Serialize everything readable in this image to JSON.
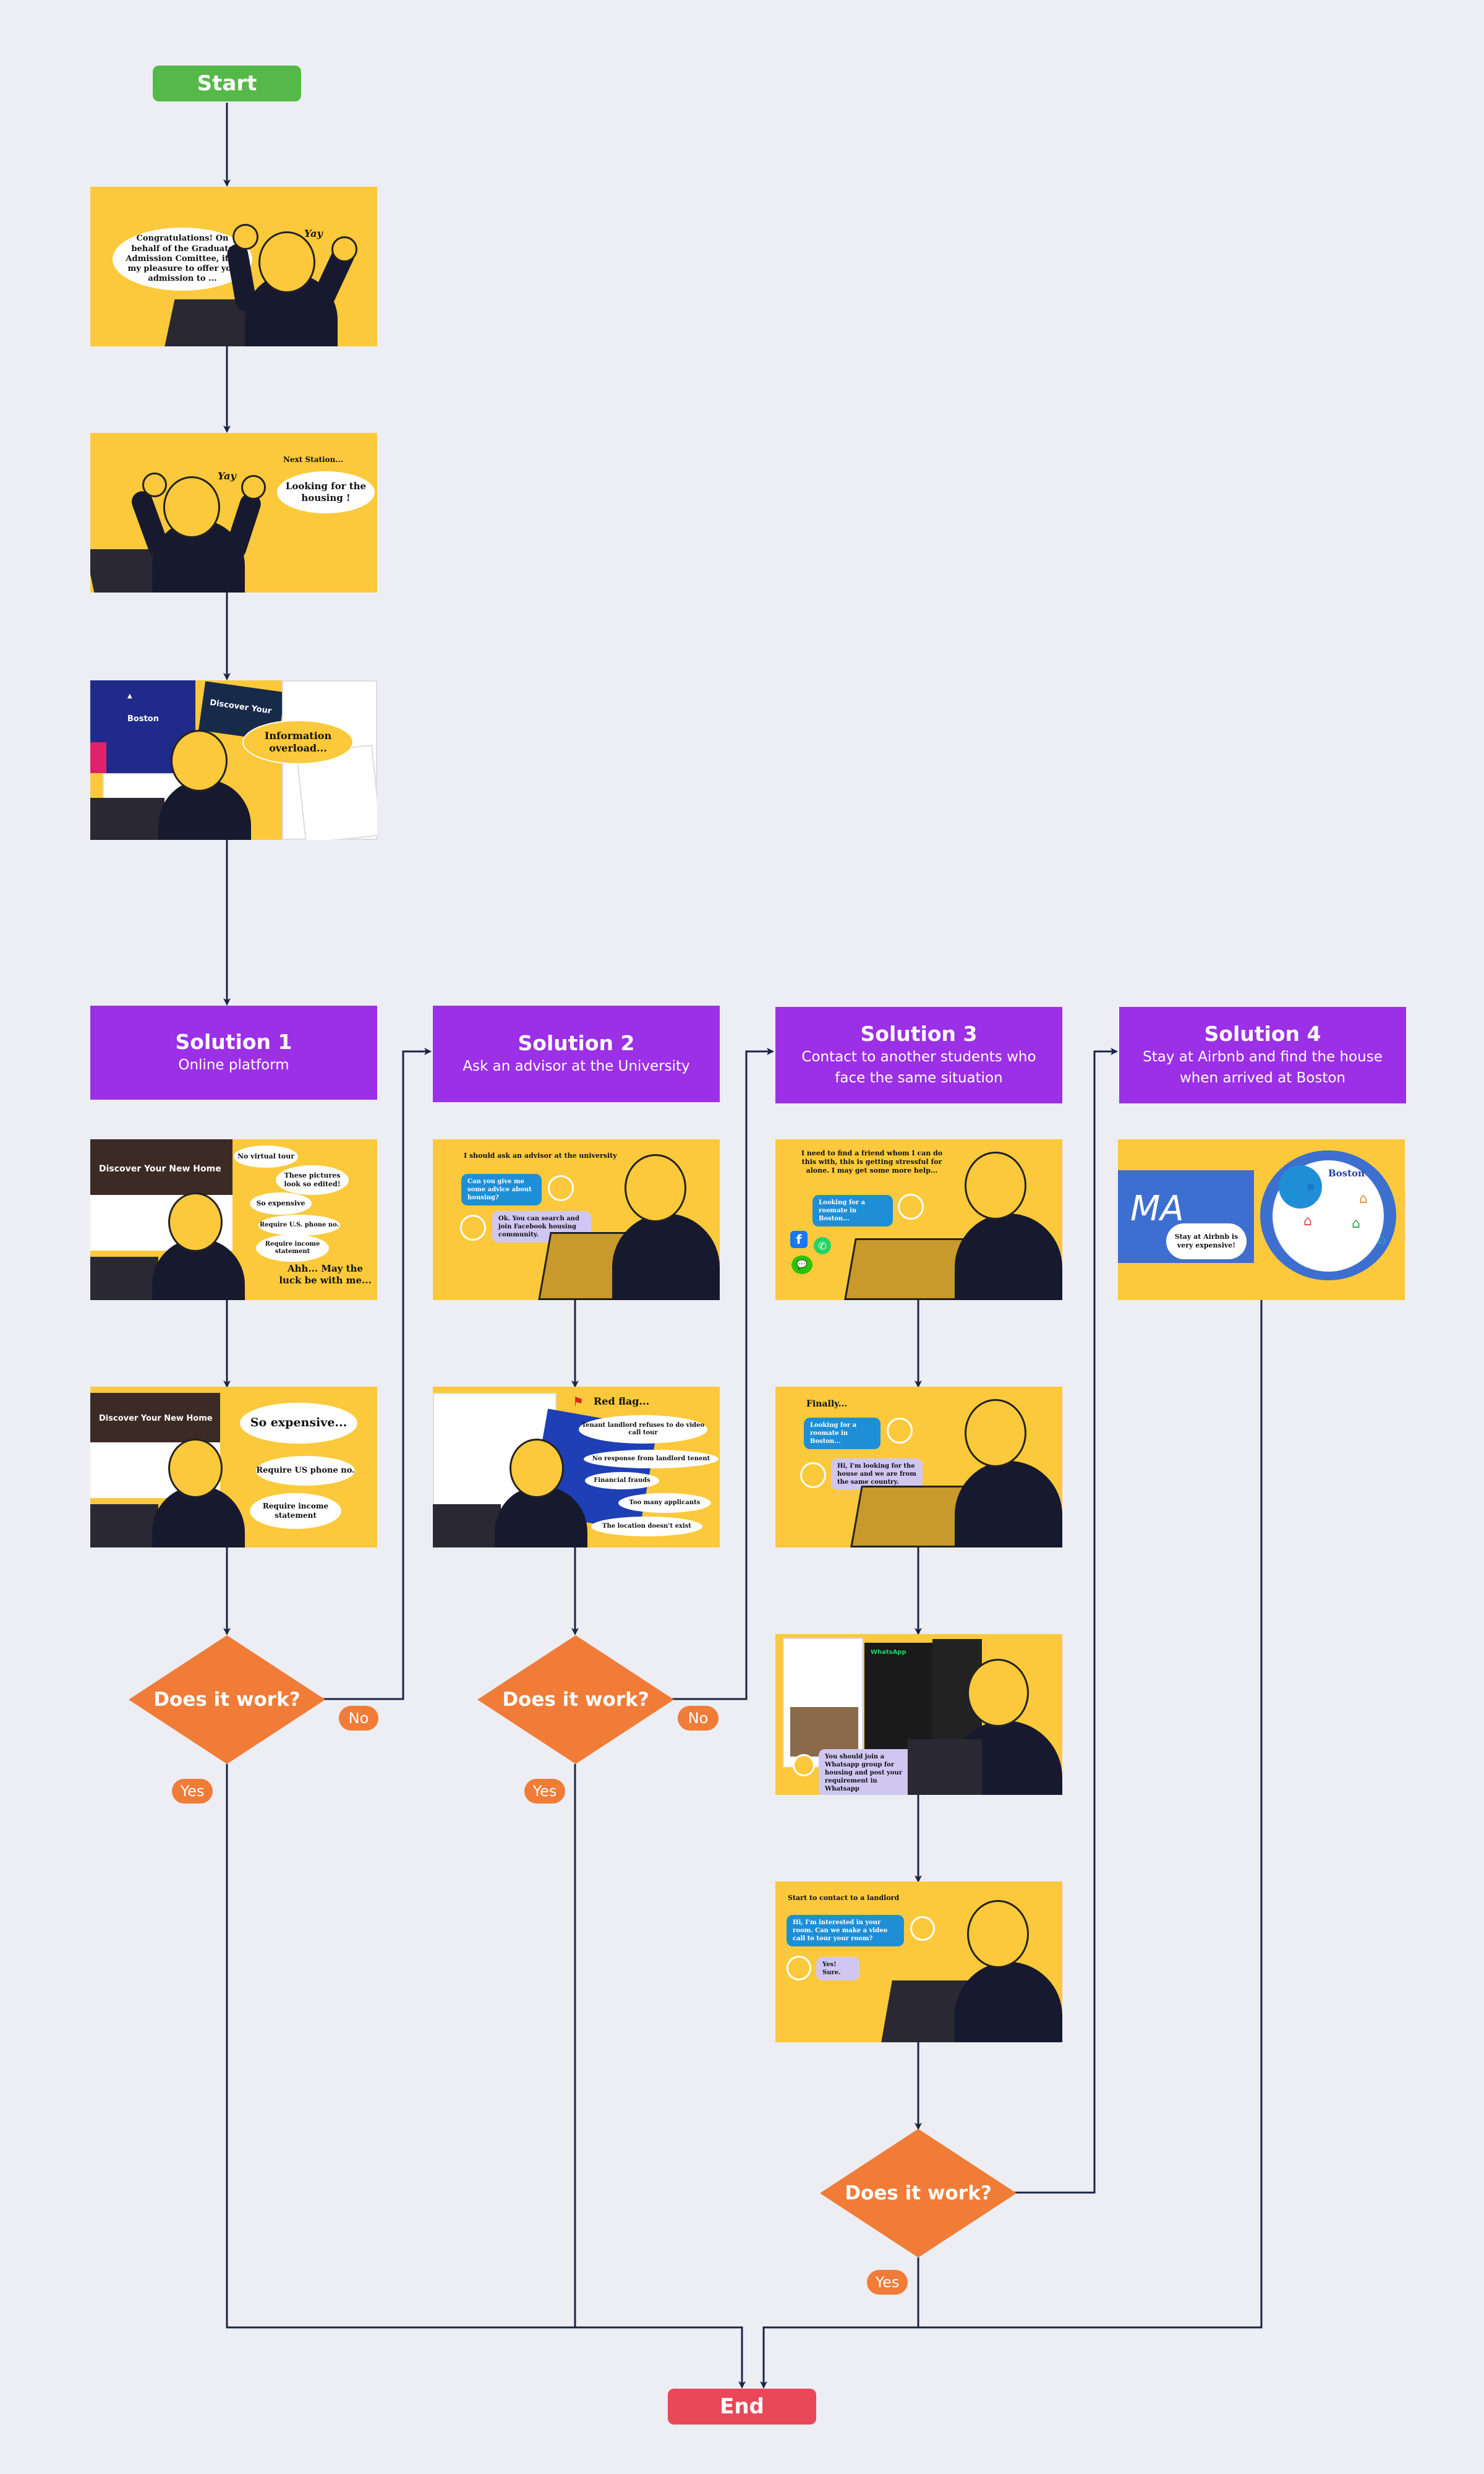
{
  "flow": {
    "start_label": "Start",
    "end_label": "End"
  },
  "intro": {
    "panel1_bubble": "Congratulations! On behalf of the Graduate Admission Comittee, it is my pleasure to offer you admission to ...",
    "panel1_yay": "Yay",
    "panel2_caption": "Next Station...",
    "panel2_bubble": "Looking for the housing !",
    "panel2_yay": "Yay",
    "panel3_bubble": "Information overload...",
    "panel3_site_a": "Boston",
    "panel3_site_b": "Discover Your"
  },
  "solutions": [
    {
      "title": "Solution 1",
      "subtitle": "Online platform"
    },
    {
      "title": "Solution 2",
      "subtitle": "Ask an advisor at the University"
    },
    {
      "title": "Solution 3",
      "subtitle": "Contact to another students who face the same situation"
    },
    {
      "title": "Solution 4",
      "subtitle": "Stay at Airbnb and find the house when arrived at Boston"
    }
  ],
  "sol1": {
    "panel1_site": "Discover Your New Home",
    "panel1_bubbles": [
      "No virtual tour",
      "These pictures look so edited!",
      "So expensive",
      "Require U.S. phone no.",
      "Require income statement",
      "Ahh... May the luck be with me..."
    ],
    "panel2_site": "Discover Your New Home",
    "panel2_bubbles": [
      "So expensive...",
      "Require US phone no.",
      "Require income statement"
    ]
  },
  "sol2": {
    "panel1_caption": "I should ask an advisor at the university",
    "panel1_chat_q": "Can you give me some advice about housing?",
    "panel1_chat_a": "Ok. You can search and join Facebook housing community.",
    "panel2_flag": "Red flag...",
    "panel2_items": [
      "Tenant landlord refuses to do video call tour",
      "No response from landlord tenent",
      "Financial frauds",
      "Too many applicants",
      "The location doesn't exist"
    ]
  },
  "sol3": {
    "panel1_caption": "I need to find a friend whom I can do this with, this is getting stressful for alone. I may get some more help...",
    "panel1_chat": "Looking for a roomate in Boston...",
    "panel2_caption": "Finally...",
    "panel2_chat_q": "Looking for a roomate in Boston...",
    "panel2_chat_a": "Hi, I'm looking for the house and we are from the same country.",
    "panel3_app": "WhatsApp",
    "panel3_chat": "You should join a Whatsapp group for housing and post your requirement in Whatsapp",
    "panel4_caption": "Start to contact to a landlord",
    "panel4_chat_q": "Hi, I'm interested in your room. Can we make a video call to tour your room?",
    "panel4_chat_a": "Yes! Sure."
  },
  "sol4": {
    "panel_state": "MA",
    "panel_city": "Boston",
    "panel_bubble": "Stay at Airbnb is very expensive!"
  },
  "decisions": {
    "question": "Does it work?",
    "yes": "Yes",
    "no": "No"
  },
  "colors": {
    "background": "#eceef3",
    "start": "#54b948",
    "end": "#e84858",
    "solution_header": "#9b30e6",
    "decision": "#f07c38",
    "panel": "#fbc93b",
    "connector": "#1b2447"
  }
}
